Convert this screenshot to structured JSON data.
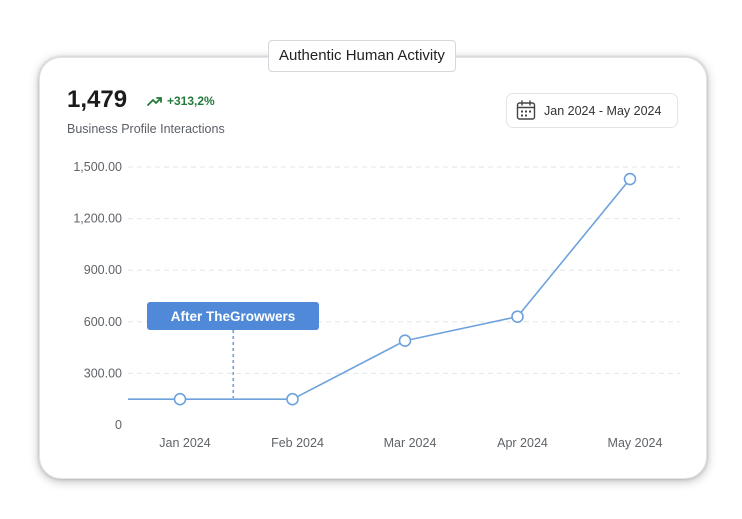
{
  "header": {
    "title": "Authentic Human Activity"
  },
  "kpi": {
    "value": "1,479",
    "change": "+313,2%",
    "label": "Business Profile Interactions"
  },
  "date_filter": {
    "label": "Jan 2024 - May 2024"
  },
  "annotation": {
    "label": "After TheGrowwers"
  },
  "icons": {
    "trend": "trend-up-icon",
    "calendar": "calendar-icon"
  },
  "colors": {
    "line": "#6ea2dc",
    "annotation_bg": "#4f89d8",
    "growth": "#237a3b"
  },
  "chart_data": {
    "type": "line",
    "categories": [
      "Jan 2024",
      "Feb 2024",
      "Mar 2024",
      "Apr 2024",
      "May 2024"
    ],
    "values": [
      150,
      150,
      490,
      630,
      1430
    ],
    "ylim": [
      0,
      1500
    ],
    "yticks": [
      0,
      300,
      600,
      900,
      1200,
      1500
    ],
    "ytick_labels": [
      "0",
      "300.00",
      "600.00",
      "900.00",
      "1,200.00",
      "1,500.00"
    ],
    "grid": true,
    "annotation_between": [
      "Jan 2024",
      "Feb 2024"
    ]
  }
}
